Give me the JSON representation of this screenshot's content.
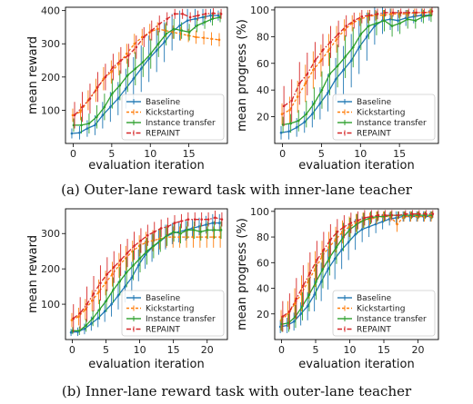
{
  "colors": {
    "Baseline": "#1f77b4",
    "Kickstarting": "#ff7f0e",
    "Instance transfer": "#2ca02c",
    "REPAINT": "#d62728"
  },
  "captions": {
    "a": "(a) Outer-lane reward task with inner-lane teacher",
    "b": "(b) Inner-lane reward task with outer-lane teacher"
  },
  "chart_data": [
    {
      "type": "line",
      "xlabel": "evaluation iteration",
      "ylabel": "mean reward",
      "xlim": [
        -1,
        20
      ],
      "ylim": [
        0,
        410
      ],
      "xticks": [
        0,
        5,
        10,
        15
      ],
      "yticks": [
        100,
        200,
        300,
        400
      ],
      "legend": "bottom-right",
      "x": [
        0,
        1,
        2,
        3,
        4,
        5,
        6,
        7,
        8,
        9,
        10,
        11,
        12,
        13,
        14,
        15,
        16,
        17,
        18,
        19
      ],
      "series": [
        {
          "name": "Baseline",
          "values": [
            30,
            32,
            45,
            55,
            85,
            110,
            135,
            165,
            195,
            225,
            255,
            280,
            305,
            335,
            355,
            370,
            375,
            380,
            385,
            385
          ],
          "err": [
            15,
            20,
            25,
            30,
            40,
            45,
            50,
            60,
            65,
            70,
            70,
            65,
            60,
            55,
            45,
            35,
            30,
            25,
            20,
            15
          ]
        },
        {
          "name": "Kickstarting",
          "values": [
            85,
            95,
            130,
            160,
            195,
            215,
            240,
            270,
            300,
            320,
            335,
            345,
            340,
            335,
            330,
            325,
            320,
            318,
            315,
            312
          ],
          "err": [
            20,
            25,
            30,
            35,
            35,
            35,
            35,
            30,
            30,
            25,
            25,
            20,
            20,
            20,
            20,
            20,
            20,
            20,
            20,
            20
          ]
        },
        {
          "name": "Instance transfer",
          "values": [
            55,
            55,
            60,
            80,
            110,
            150,
            175,
            205,
            225,
            245,
            270,
            300,
            330,
            345,
            340,
            335,
            355,
            365,
            375,
            380
          ],
          "err": [
            20,
            25,
            30,
            35,
            40,
            45,
            45,
            50,
            50,
            45,
            45,
            40,
            35,
            30,
            25,
            25,
            20,
            20,
            20,
            15
          ]
        },
        {
          "name": "REPAINT",
          "values": [
            85,
            110,
            135,
            170,
            200,
            230,
            250,
            265,
            290,
            320,
            340,
            360,
            375,
            390,
            390,
            380,
            385,
            390,
            392,
            390
          ],
          "err": [
            40,
            45,
            45,
            45,
            40,
            40,
            40,
            35,
            35,
            30,
            30,
            25,
            20,
            15,
            15,
            15,
            15,
            15,
            15,
            15
          ]
        }
      ]
    },
    {
      "type": "line",
      "xlabel": "evaluation iteration",
      "ylabel": "mean progress (%)",
      "xlim": [
        -1,
        20
      ],
      "ylim": [
        0,
        102
      ],
      "xticks": [
        0,
        5,
        10,
        15
      ],
      "yticks": [
        20,
        40,
        60,
        80,
        100
      ],
      "legend": "bottom-right",
      "x": [
        0,
        1,
        2,
        3,
        4,
        5,
        6,
        7,
        8,
        9,
        10,
        11,
        12,
        13,
        14,
        15,
        16,
        17,
        18,
        19
      ],
      "series": [
        {
          "name": "Baseline",
          "values": [
            8,
            9,
            12,
            16,
            22,
            30,
            38,
            48,
            55,
            62,
            72,
            80,
            88,
            92,
            93,
            92,
            94,
            95,
            96,
            96
          ],
          "err": [
            5,
            6,
            7,
            8,
            10,
            12,
            14,
            16,
            18,
            20,
            20,
            18,
            14,
            10,
            8,
            8,
            6,
            5,
            5,
            4
          ]
        },
        {
          "name": "Kickstarting",
          "values": [
            22,
            25,
            35,
            45,
            55,
            62,
            70,
            78,
            85,
            90,
            93,
            95,
            96,
            96,
            97,
            97,
            97,
            98,
            98,
            98
          ],
          "err": [
            8,
            10,
            12,
            14,
            14,
            12,
            12,
            10,
            8,
            6,
            5,
            5,
            4,
            4,
            4,
            3,
            3,
            3,
            3,
            3
          ]
        },
        {
          "name": "Instance transfer",
          "values": [
            14,
            15,
            17,
            22,
            30,
            40,
            52,
            58,
            65,
            72,
            82,
            88,
            90,
            92,
            88,
            90,
            93,
            92,
            95,
            96
          ],
          "err": [
            6,
            7,
            8,
            10,
            12,
            14,
            16,
            16,
            16,
            15,
            12,
            10,
            9,
            8,
            8,
            8,
            7,
            6,
            5,
            5
          ]
        },
        {
          "name": "REPAINT",
          "values": [
            28,
            32,
            45,
            52,
            62,
            70,
            76,
            82,
            88,
            92,
            95,
            96,
            97,
            98,
            98,
            98,
            98,
            98,
            98,
            99
          ],
          "err": [
            15,
            16,
            16,
            16,
            14,
            12,
            12,
            10,
            8,
            6,
            5,
            4,
            4,
            3,
            3,
            3,
            3,
            3,
            3,
            3
          ]
        }
      ]
    },
    {
      "type": "line",
      "xlabel": "evaluation iteration",
      "ylabel": "mean reward",
      "xlim": [
        -1,
        23
      ],
      "ylim": [
        0,
        370
      ],
      "xticks": [
        0,
        5,
        10,
        15,
        20
      ],
      "yticks": [
        100,
        200,
        300
      ],
      "legend": "bottom-right",
      "x": [
        0,
        1,
        2,
        3,
        4,
        5,
        6,
        7,
        8,
        9,
        10,
        11,
        12,
        13,
        14,
        15,
        16,
        17,
        18,
        19,
        20,
        21,
        22
      ],
      "series": [
        {
          "name": "Baseline",
          "values": [
            20,
            22,
            30,
            45,
            60,
            80,
            100,
            125,
            150,
            175,
            210,
            240,
            260,
            275,
            290,
            300,
            305,
            310,
            315,
            320,
            325,
            330,
            330
          ],
          "err": [
            10,
            12,
            15,
            20,
            25,
            30,
            35,
            40,
            45,
            45,
            45,
            40,
            40,
            35,
            35,
            30,
            30,
            30,
            25,
            25,
            25,
            25,
            25
          ]
        },
        {
          "name": "Kickstarting",
          "values": [
            55,
            65,
            85,
            110,
            135,
            160,
            185,
            210,
            230,
            250,
            265,
            275,
            280,
            285,
            290,
            290,
            290,
            290,
            290,
            290,
            290,
            290,
            290
          ],
          "err": [
            20,
            25,
            30,
            30,
            35,
            35,
            35,
            35,
            35,
            30,
            30,
            30,
            30,
            30,
            30,
            30,
            30,
            30,
            30,
            30,
            30,
            30,
            30
          ]
        },
        {
          "name": "Instance transfer",
          "values": [
            25,
            25,
            40,
            60,
            85,
            110,
            140,
            165,
            190,
            210,
            230,
            250,
            265,
            280,
            295,
            305,
            300,
            310,
            310,
            305,
            310,
            310,
            310
          ],
          "err": [
            10,
            12,
            18,
            22,
            28,
            32,
            36,
            40,
            42,
            42,
            40,
            38,
            35,
            32,
            30,
            28,
            28,
            25,
            25,
            25,
            25,
            25,
            25
          ]
        },
        {
          "name": "REPAINT",
          "values": [
            60,
            75,
            100,
            130,
            160,
            185,
            205,
            225,
            245,
            265,
            280,
            295,
            305,
            315,
            320,
            330,
            335,
            340,
            340,
            340,
            340,
            345,
            340
          ],
          "err": [
            40,
            45,
            50,
            50,
            50,
            48,
            45,
            45,
            40,
            40,
            35,
            30,
            28,
            25,
            25,
            22,
            20,
            20,
            20,
            20,
            20,
            20,
            20
          ]
        }
      ]
    },
    {
      "type": "line",
      "xlabel": "evaluation iteration",
      "ylabel": "mean progress (%)",
      "xlim": [
        -1,
        23
      ],
      "ylim": [
        0,
        102
      ],
      "xticks": [
        0,
        5,
        10,
        15,
        20
      ],
      "yticks": [
        20,
        40,
        60,
        80,
        100
      ],
      "legend": "bottom-right",
      "x": [
        0,
        1,
        2,
        3,
        4,
        5,
        6,
        7,
        8,
        9,
        10,
        11,
        12,
        13,
        14,
        15,
        16,
        17,
        18,
        19,
        20,
        21,
        22
      ],
      "series": [
        {
          "name": "Baseline",
          "values": [
            10,
            11,
            14,
            20,
            26,
            35,
            45,
            55,
            63,
            70,
            76,
            82,
            86,
            88,
            90,
            92,
            94,
            95,
            96,
            96,
            96,
            96,
            96
          ],
          "err": [
            5,
            6,
            7,
            9,
            11,
            13,
            15,
            16,
            16,
            15,
            14,
            12,
            10,
            8,
            7,
            6,
            5,
            5,
            4,
            4,
            4,
            4,
            4
          ]
        },
        {
          "name": "Kickstarting",
          "values": [
            15,
            20,
            28,
            36,
            46,
            55,
            65,
            72,
            78,
            84,
            88,
            91,
            93,
            94,
            95,
            96,
            96,
            90,
            96,
            96,
            96,
            96,
            96
          ],
          "err": [
            8,
            10,
            12,
            14,
            14,
            14,
            12,
            12,
            10,
            9,
            8,
            7,
            6,
            5,
            5,
            4,
            4,
            6,
            4,
            4,
            4,
            4,
            4
          ]
        },
        {
          "name": "Instance transfer",
          "values": [
            12,
            13,
            18,
            26,
            35,
            45,
            55,
            64,
            72,
            80,
            86,
            90,
            93,
            95,
            96,
            96,
            97,
            97,
            97,
            97,
            97,
            97,
            97
          ],
          "err": [
            6,
            7,
            9,
            11,
            13,
            14,
            15,
            14,
            13,
            11,
            9,
            8,
            6,
            5,
            4,
            4,
            3,
            3,
            3,
            3,
            3,
            3,
            3
          ]
        },
        {
          "name": "REPAINT",
          "values": [
            18,
            22,
            32,
            42,
            52,
            62,
            70,
            78,
            84,
            88,
            91,
            93,
            95,
            96,
            97,
            97,
            97,
            97,
            98,
            98,
            98,
            98,
            98
          ],
          "err": [
            12,
            14,
            16,
            16,
            16,
            15,
            14,
            12,
            10,
            9,
            8,
            7,
            6,
            5,
            4,
            4,
            4,
            3,
            3,
            3,
            3,
            3,
            3
          ]
        }
      ]
    }
  ]
}
